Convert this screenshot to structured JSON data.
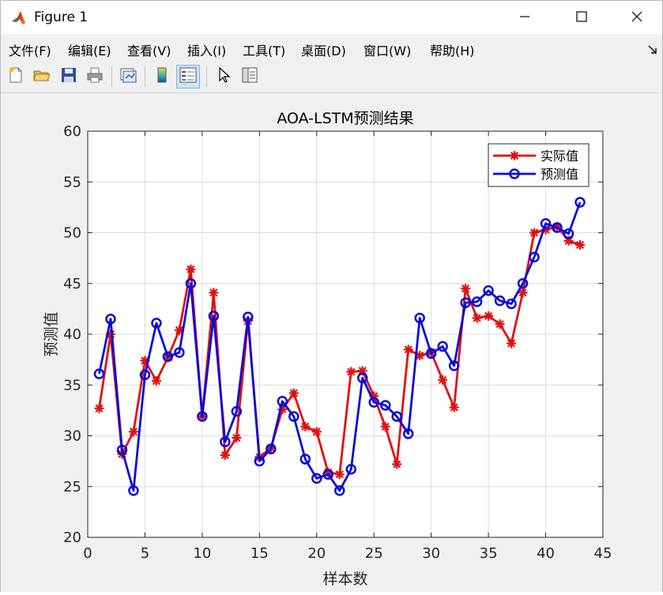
{
  "window": {
    "title": "Figure 1"
  },
  "menu": {
    "items": [
      "文件(F)",
      "编辑(E)",
      "查看(V)",
      "插入(I)",
      "工具(T)",
      "桌面(D)",
      "窗口(W)",
      "帮助(H)"
    ]
  },
  "toolbar": {
    "buttons": [
      "new-figure",
      "open-file",
      "save",
      "print",
      "link-plot",
      "insert-colorbar",
      "insert-legend",
      "edit-plot",
      "open-property-inspector"
    ]
  },
  "colors": {
    "actual": "#e01010",
    "predicted": "#0a0ad8"
  },
  "chart_data": {
    "type": "line",
    "title": "AOA-LSTM预测结果",
    "xlabel": "样本数",
    "ylabel": "预测值",
    "xlim": [
      0,
      45
    ],
    "ylim": [
      20,
      60
    ],
    "xticks": [
      0,
      5,
      10,
      15,
      20,
      25,
      30,
      35,
      40,
      45
    ],
    "yticks": [
      20,
      25,
      30,
      35,
      40,
      45,
      50,
      55,
      60
    ],
    "grid": true,
    "legend_position": "top-right",
    "x": [
      1,
      2,
      3,
      4,
      5,
      6,
      7,
      8,
      9,
      10,
      11,
      12,
      13,
      14,
      15,
      16,
      17,
      18,
      19,
      20,
      21,
      22,
      23,
      24,
      25,
      26,
      27,
      28,
      29,
      30,
      31,
      32,
      33,
      34,
      35,
      36,
      37,
      38,
      39,
      40,
      41,
      42,
      43
    ],
    "series": [
      {
        "name": "实际值",
        "marker": "asterisk",
        "values": [
          32.7,
          40.0,
          28.2,
          30.4,
          37.4,
          35.4,
          37.7,
          40.4,
          46.4,
          31.9,
          44.1,
          28.1,
          29.8,
          41.3,
          27.9,
          28.8,
          32.6,
          34.2,
          30.9,
          30.4,
          26.4,
          26.2,
          36.3,
          36.4,
          33.9,
          30.9,
          27.2,
          38.5,
          37.9,
          38.2,
          35.5,
          32.8,
          44.5,
          41.6,
          41.8,
          41.0,
          39.1,
          44.1,
          50.0,
          50.3,
          50.6,
          49.2,
          48.8
        ]
      },
      {
        "name": "预测值",
        "marker": "circle",
        "values": [
          36.1,
          41.5,
          28.6,
          24.6,
          36.0,
          41.1,
          37.8,
          38.2,
          45.0,
          31.9,
          41.8,
          29.4,
          32.4,
          41.7,
          27.5,
          28.7,
          33.4,
          31.9,
          27.7,
          25.8,
          26.2,
          24.6,
          26.7,
          35.7,
          33.3,
          33.0,
          31.9,
          30.2,
          41.6,
          38.1,
          38.8,
          36.9,
          43.1,
          43.2,
          44.3,
          43.3,
          43.0,
          45.0,
          47.6,
          50.9,
          50.5,
          49.9,
          53.0
        ]
      }
    ]
  }
}
